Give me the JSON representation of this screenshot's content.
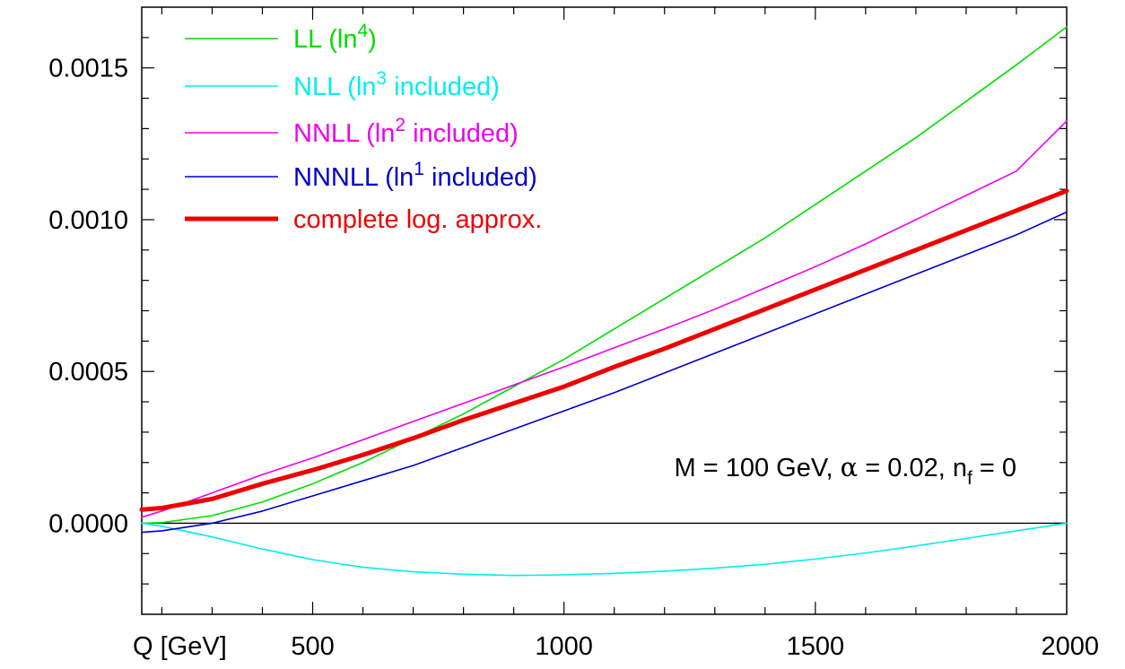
{
  "chart_data": {
    "type": "line",
    "x_axis": {
      "label": "Q [GeV]",
      "range": [
        160,
        2000
      ],
      "ticks": [
        {
          "value": 500,
          "label": "500"
        },
        {
          "value": 1000,
          "label": "1000"
        },
        {
          "value": 1500,
          "label": "1500"
        },
        {
          "value": 2000,
          "label": "2000"
        }
      ]
    },
    "y_axis": {
      "label": "",
      "range": [
        -0.0003,
        0.0017
      ],
      "ticks": [
        {
          "value": 0.0,
          "label": "0.0000"
        },
        {
          "value": 0.0005,
          "label": "0.0005"
        },
        {
          "value": 0.001,
          "label": "0.0010"
        },
        {
          "value": 0.0015,
          "label": "0.0015"
        }
      ]
    },
    "grid": false,
    "legend_position": "top-left",
    "annotation": {
      "parts": [
        "M = 100 GeV, ",
        "α",
        " = 0.02, n",
        "f",
        " = 0"
      ]
    },
    "series": [
      {
        "name_parts": [
          "LL (ln",
          "4",
          ")"
        ],
        "color": "#00dd00",
        "width": 1.6,
        "x": [
          160,
          200,
          300,
          400,
          500,
          600,
          700,
          800,
          900,
          1000,
          1100,
          1200,
          1300,
          1400,
          1500,
          1600,
          1700,
          1800,
          1900,
          2000
        ],
        "y": [
          0.0,
          2e-06,
          2.5e-05,
          7e-05,
          0.00013,
          0.0002,
          0.00028,
          0.00036,
          0.00045,
          0.00054,
          0.00064,
          0.00074,
          0.00084,
          0.00094,
          0.00105,
          0.00116,
          0.00127,
          0.00139,
          0.00151,
          0.001635
        ]
      },
      {
        "name_parts": [
          "NLL (ln",
          "3",
          " included)"
        ],
        "color": "#00eeee",
        "width": 1.6,
        "x": [
          160,
          200,
          300,
          400,
          500,
          600,
          700,
          800,
          900,
          1000,
          1100,
          1200,
          1300,
          1400,
          1500,
          1600,
          1700,
          1800,
          1900,
          2000
        ],
        "y": [
          0.0,
          -1e-05,
          -4.5e-05,
          -8.5e-05,
          -0.00012,
          -0.000145,
          -0.00016,
          -0.000168,
          -0.000172,
          -0.00017,
          -0.000165,
          -0.000158,
          -0.000148,
          -0.000135,
          -0.000118,
          -9.8e-05,
          -7.5e-05,
          -5e-05,
          -2.5e-05,
          0.0
        ]
      },
      {
        "name_parts": [
          "NNLL (ln",
          "2",
          " included)"
        ],
        "color": "#ee00ee",
        "width": 1.6,
        "x": [
          160,
          200,
          300,
          400,
          500,
          600,
          700,
          800,
          900,
          1000,
          1100,
          1200,
          1300,
          1400,
          1500,
          1600,
          1700,
          1800,
          1900,
          2000
        ],
        "y": [
          2e-05,
          4e-05,
          0.0001,
          0.00016,
          0.000215,
          0.000275,
          0.000335,
          0.000395,
          0.000455,
          0.000515,
          0.000578,
          0.00064,
          0.000705,
          0.000775,
          0.000845,
          0.00092,
          0.001,
          0.00108,
          0.00116,
          0.001325
        ]
      },
      {
        "name_parts": [
          "NNNLL (ln",
          "1",
          " included)"
        ],
        "color": "#0000cc",
        "width": 1.6,
        "x": [
          160,
          200,
          300,
          400,
          500,
          600,
          700,
          800,
          900,
          1000,
          1100,
          1200,
          1300,
          1400,
          1500,
          1600,
          1700,
          1800,
          1900,
          2000
        ],
        "y": [
          -3e-05,
          -2.5e-05,
          0.0,
          4e-05,
          9e-05,
          0.00014,
          0.00019,
          0.00025,
          0.00031,
          0.00037,
          0.00043,
          0.000495,
          0.00056,
          0.000625,
          0.00069,
          0.000755,
          0.00082,
          0.000885,
          0.00095,
          0.001025
        ]
      },
      {
        "name_parts": [
          "complete log. approx."
        ],
        "color": "#ee0000",
        "width": 5,
        "x": [
          160,
          200,
          300,
          400,
          500,
          600,
          700,
          800,
          900,
          1000,
          1100,
          1200,
          1300,
          1400,
          1500,
          1600,
          1700,
          1800,
          1900,
          2000
        ],
        "y": [
          4.5e-05,
          5e-05,
          8e-05,
          0.00013,
          0.000175,
          0.000225,
          0.00028,
          0.00034,
          0.000395,
          0.00045,
          0.000515,
          0.000575,
          0.00064,
          0.000705,
          0.00077,
          0.000835,
          0.0009,
          0.000965,
          0.00103,
          0.001095
        ]
      }
    ]
  }
}
